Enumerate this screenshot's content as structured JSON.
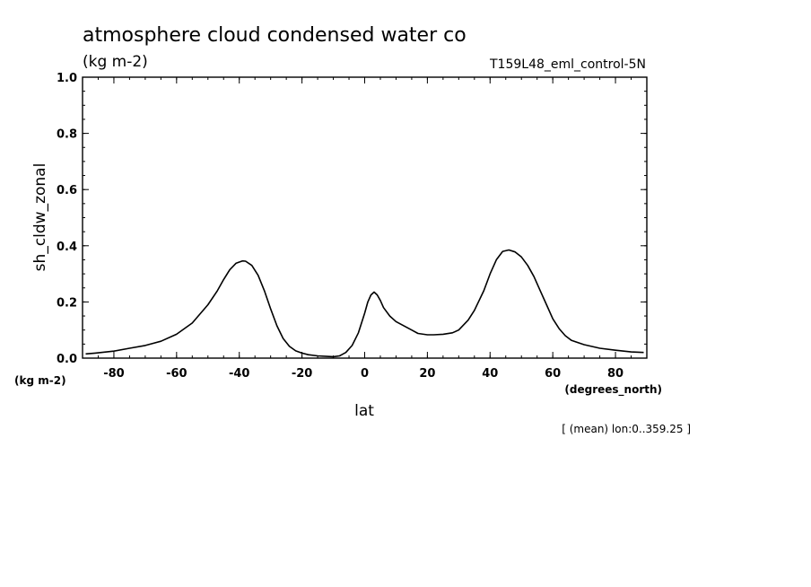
{
  "chart_data": {
    "type": "line",
    "title": "atmosphere cloud condensed water co",
    "title_units": "(kg m-2)",
    "run_label": "T159L48_eml_control-5N",
    "ylabel": "sh_cldw_zonal",
    "y_units_label": "(kg m-2)",
    "xlabel": "lat",
    "x_units_label": "(degrees_north)",
    "footnote": "[ (mean) lon:0..359.25 ]",
    "xlim": [
      -90,
      90
    ],
    "ylim": [
      0.0,
      1.0
    ],
    "x_ticks": [
      -80,
      -60,
      -40,
      -20,
      0,
      20,
      40,
      60,
      80
    ],
    "x_tick_labels": [
      "-80",
      "-60",
      "-40",
      "-20",
      "0",
      "20",
      "40",
      "60",
      "80"
    ],
    "y_ticks": [
      0.0,
      0.2,
      0.4,
      0.6,
      0.8,
      1.0
    ],
    "y_tick_labels": [
      "0.0",
      "0.2",
      "0.4",
      "0.6",
      "0.8",
      "1.0"
    ],
    "grid": false,
    "line_color": "#000000",
    "series": [
      {
        "x": [
          -89,
          -86,
          -80,
          -75,
          -70,
          -65,
          -60,
          -55,
          -50,
          -47,
          -45,
          -43,
          -41,
          -39,
          -38,
          -36,
          -34,
          -32,
          -30,
          -28,
          -26,
          -24,
          -22,
          -20,
          -18,
          -15,
          -12,
          -10,
          -8,
          -6,
          -4,
          -2,
          0,
          1,
          2,
          3,
          4,
          5,
          6,
          8,
          10,
          12,
          15,
          17,
          20,
          22,
          25,
          28,
          30,
          33,
          35,
          38,
          40,
          42,
          44,
          46,
          48,
          50,
          52,
          54,
          56,
          58,
          60,
          62,
          64,
          66,
          70,
          75,
          80,
          85,
          89
        ],
        "y": [
          0.015,
          0.018,
          0.025,
          0.035,
          0.045,
          0.06,
          0.085,
          0.125,
          0.19,
          0.24,
          0.28,
          0.315,
          0.338,
          0.346,
          0.345,
          0.33,
          0.295,
          0.24,
          0.175,
          0.115,
          0.07,
          0.042,
          0.026,
          0.018,
          0.012,
          0.008,
          0.006,
          0.005,
          0.008,
          0.02,
          0.045,
          0.09,
          0.16,
          0.2,
          0.225,
          0.235,
          0.225,
          0.205,
          0.18,
          0.15,
          0.13,
          0.118,
          0.1,
          0.088,
          0.083,
          0.083,
          0.085,
          0.09,
          0.1,
          0.135,
          0.17,
          0.24,
          0.3,
          0.35,
          0.38,
          0.385,
          0.378,
          0.36,
          0.33,
          0.29,
          0.24,
          0.19,
          0.14,
          0.105,
          0.08,
          0.063,
          0.048,
          0.035,
          0.028,
          0.022,
          0.02
        ]
      }
    ]
  }
}
